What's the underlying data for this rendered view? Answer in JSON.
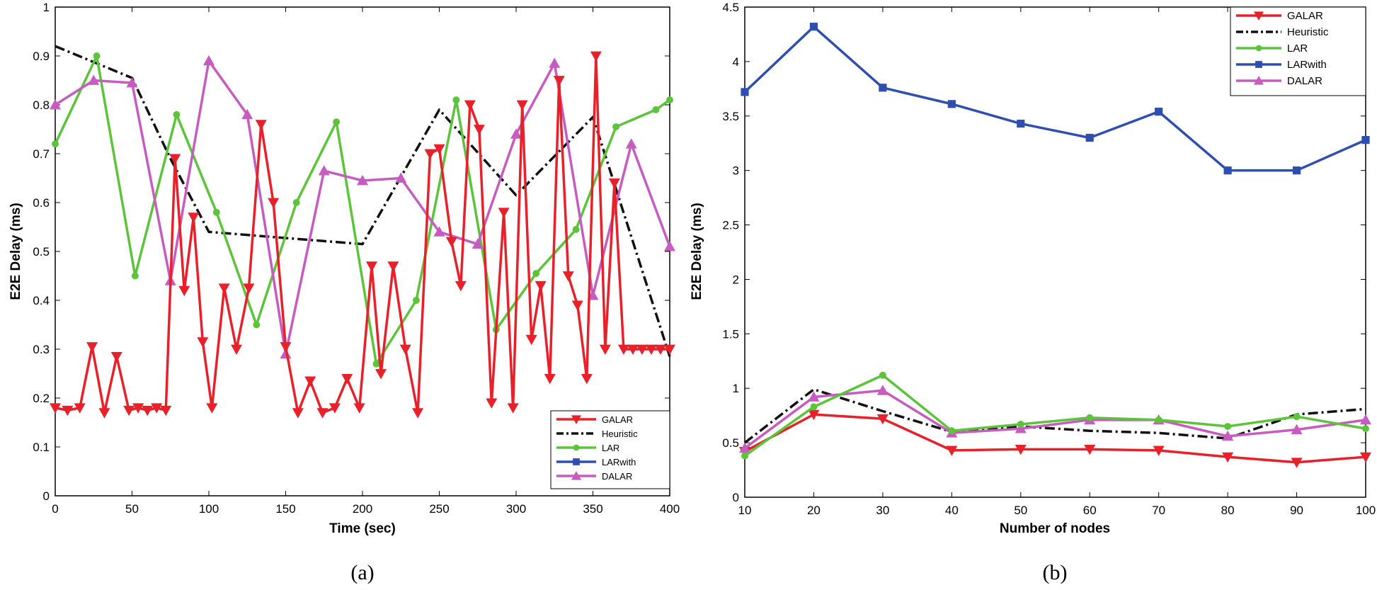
{
  "colors": {
    "GALAR": "#e8202a",
    "Heuristic": "#111111",
    "LAR": "#5cc43a",
    "LARwith": "#2f4fb0",
    "DALAR": "#c65bc0"
  },
  "chart_data": [
    {
      "type": "line",
      "panel_label": "(a)",
      "title": "",
      "xlabel": "Time (sec)",
      "ylabel": "E2E Delay (ms)",
      "xlim": [
        0,
        400
      ],
      "ylim": [
        0,
        1
      ],
      "xticks": [
        0,
        50,
        100,
        150,
        200,
        250,
        300,
        350,
        400
      ],
      "yticks": [
        0,
        0.1,
        0.2,
        0.3,
        0.4,
        0.5,
        0.6,
        0.7,
        0.8,
        0.9,
        1
      ],
      "xtick_labels": [
        "0",
        "50",
        "100",
        "150",
        "200",
        "250",
        "300",
        "350",
        "400"
      ],
      "ytick_labels": [
        "0",
        "0.1",
        "0.2",
        "0.3",
        "0.4",
        "0.5",
        "0.6",
        "0.7",
        "0.8",
        "0.9",
        "1"
      ],
      "grid": false,
      "legend_position": "bottom-right",
      "legend": [
        "GALAR",
        "Heuristic",
        "LAR",
        "LARwith",
        "DALAR"
      ],
      "series": [
        {
          "name": "GALAR",
          "marker": "triangle-down",
          "x": [
            0,
            8,
            16,
            24,
            32,
            40,
            48,
            54,
            60,
            66,
            72,
            78,
            84,
            90,
            96,
            102,
            110,
            118,
            126,
            134,
            142,
            150,
            158,
            166,
            174,
            182,
            190,
            198,
            206,
            212,
            220,
            228,
            236,
            244,
            250,
            258,
            264,
            270,
            276,
            284,
            292,
            298,
            304,
            310,
            316,
            322,
            328,
            334,
            340,
            346,
            352,
            358,
            364,
            370,
            376,
            382,
            388,
            394,
            400
          ],
          "values": [
            0.18,
            0.175,
            0.18,
            0.305,
            0.17,
            0.285,
            0.175,
            0.18,
            0.175,
            0.18,
            0.175,
            0.69,
            0.42,
            0.57,
            0.315,
            0.18,
            0.425,
            0.3,
            0.425,
            0.76,
            0.6,
            0.305,
            0.17,
            0.235,
            0.17,
            0.18,
            0.24,
            0.18,
            0.47,
            0.25,
            0.47,
            0.3,
            0.17,
            0.7,
            0.71,
            0.52,
            0.43,
            0.8,
            0.75,
            0.19,
            0.58,
            0.18,
            0.8,
            0.32,
            0.43,
            0.24,
            0.85,
            0.45,
            0.39,
            0.24,
            0.9,
            0.3,
            0.64,
            0.3,
            0.3,
            0.3,
            0.3,
            0.3,
            0.3
          ]
        },
        {
          "name": "Heuristic",
          "marker": "none",
          "x": [
            0,
            50,
            75,
            100,
            200,
            250,
            300,
            350,
            400
          ],
          "values": [
            0.92,
            0.855,
            0.69,
            0.54,
            0.515,
            0.79,
            0.615,
            0.775,
            0.285
          ]
        },
        {
          "name": "LAR",
          "marker": "circle",
          "x": [
            0,
            27,
            52,
            79,
            105,
            131,
            157,
            183,
            209,
            235,
            261,
            287,
            313,
            339,
            365,
            391,
            400
          ],
          "values": [
            0.72,
            0.9,
            0.45,
            0.78,
            0.58,
            0.35,
            0.6,
            0.765,
            0.27,
            0.4,
            0.81,
            0.34,
            0.455,
            0.545,
            0.755,
            0.79,
            0.81
          ]
        },
        {
          "name": "LARwith",
          "marker": "square",
          "x": [],
          "values": []
        },
        {
          "name": "DALAR",
          "marker": "triangle-up",
          "x": [
            0,
            25,
            50,
            75,
            100,
            125,
            150,
            175,
            200,
            225,
            250,
            275,
            300,
            325,
            350,
            375,
            400
          ],
          "values": [
            0.8,
            0.85,
            0.845,
            0.44,
            0.89,
            0.78,
            0.29,
            0.665,
            0.645,
            0.65,
            0.54,
            0.515,
            0.74,
            0.885,
            0.41,
            0.72,
            0.51
          ]
        }
      ]
    },
    {
      "type": "line",
      "panel_label": "(b)",
      "title": "",
      "xlabel": "Number of nodes",
      "ylabel": "E2E Delay (ms)",
      "xlim": [
        10,
        100
      ],
      "ylim": [
        0,
        4.5
      ],
      "xticks": [
        10,
        20,
        30,
        40,
        50,
        60,
        70,
        80,
        90,
        100
      ],
      "yticks": [
        0,
        0.5,
        1,
        1.5,
        2,
        2.5,
        3,
        3.5,
        4,
        4.5
      ],
      "xtick_labels": [
        "10",
        "20",
        "30",
        "40",
        "50",
        "60",
        "70",
        "80",
        "90",
        "100"
      ],
      "ytick_labels": [
        "0",
        "0.5",
        "1",
        "1.5",
        "2",
        "2.5",
        "3",
        "3.5",
        "4",
        "4.5"
      ],
      "grid": false,
      "legend_position": "top-right",
      "legend": [
        "GALAR",
        "Heuristic",
        "LAR",
        "LARwith",
        "DALAR"
      ],
      "categories": [
        10,
        20,
        30,
        40,
        50,
        60,
        70,
        80,
        90,
        100
      ],
      "series": [
        {
          "name": "GALAR",
          "marker": "triangle-down",
          "x": [
            10,
            20,
            30,
            40,
            50,
            60,
            70,
            80,
            90,
            100
          ],
          "values": [
            0.42,
            0.76,
            0.72,
            0.43,
            0.44,
            0.44,
            0.43,
            0.37,
            0.32,
            0.37
          ]
        },
        {
          "name": "Heuristic",
          "marker": "none",
          "x": [
            10,
            20,
            30,
            40,
            50,
            60,
            70,
            80,
            90,
            100
          ],
          "values": [
            0.5,
            0.99,
            0.79,
            0.6,
            0.65,
            0.61,
            0.59,
            0.54,
            0.76,
            0.81
          ]
        },
        {
          "name": "LAR",
          "marker": "circle",
          "x": [
            10,
            20,
            30,
            40,
            50,
            60,
            70,
            80,
            90,
            100
          ],
          "values": [
            0.38,
            0.83,
            1.12,
            0.61,
            0.67,
            0.73,
            0.71,
            0.65,
            0.74,
            0.63
          ]
        },
        {
          "name": "LARwith",
          "marker": "square",
          "x": [
            10,
            20,
            30,
            40,
            50,
            60,
            70,
            80,
            90,
            100
          ],
          "values": [
            3.72,
            4.32,
            3.76,
            3.61,
            3.43,
            3.3,
            3.54,
            3.0,
            3.0,
            3.28
          ]
        },
        {
          "name": "DALAR",
          "marker": "triangle-up",
          "x": [
            10,
            20,
            30,
            40,
            50,
            60,
            70,
            80,
            90,
            100
          ],
          "values": [
            0.45,
            0.92,
            0.98,
            0.59,
            0.63,
            0.71,
            0.71,
            0.56,
            0.62,
            0.71
          ]
        }
      ]
    }
  ]
}
